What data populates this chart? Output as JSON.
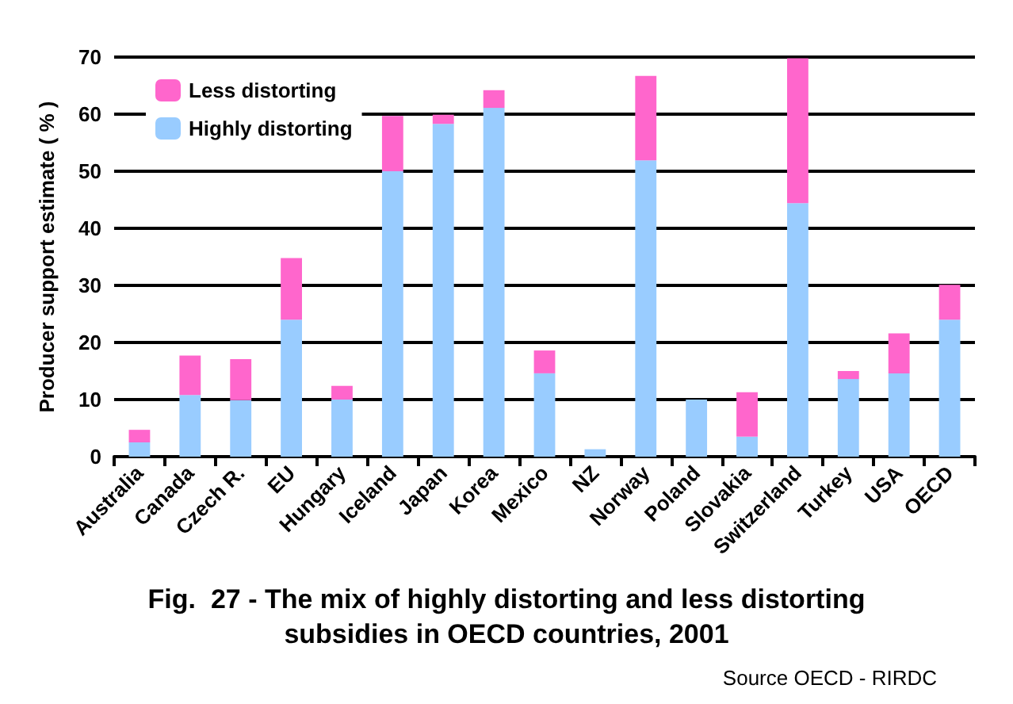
{
  "chart_data": {
    "type": "bar",
    "title": "Fig.  27 - The mix of highly distorting and less distorting\nsubsidies in OECD countries, 2001",
    "ylabel": "Producer support estimate ( % )",
    "annotations": [
      "Source OECD - RIRDC"
    ],
    "categories": [
      "Australia",
      "Canada",
      "Czech R.",
      "EU",
      "Hungary",
      "Iceland",
      "Japan",
      "Korea",
      "Mexico",
      "NZ",
      "Norway",
      "Poland",
      "Slovakia",
      "Switzerland",
      "Turkey",
      "USA",
      "OECD"
    ],
    "stacked": true,
    "series": [
      {
        "name": "Highly distorting",
        "color": "#99ccff",
        "values": [
          2.5,
          10.8,
          9.9,
          24,
          10,
          50,
          58.3,
          61.1,
          14.6,
          1.3,
          51.9,
          10,
          3.5,
          44.4,
          13.6,
          14.6,
          24
        ]
      },
      {
        "name": "Less distorting",
        "color": "#ff66cc",
        "values": [
          2.2,
          6.9,
          7.2,
          10.8,
          2.4,
          9.7,
          1.6,
          3.1,
          4,
          0,
          14.8,
          0,
          7.8,
          25.4,
          1.4,
          7,
          6.1
        ]
      }
    ],
    "ylim": [
      0,
      70
    ],
    "yticks": [
      0,
      10,
      20,
      30,
      40,
      50,
      60,
      70
    ],
    "grid": "y",
    "legend": "top left"
  }
}
